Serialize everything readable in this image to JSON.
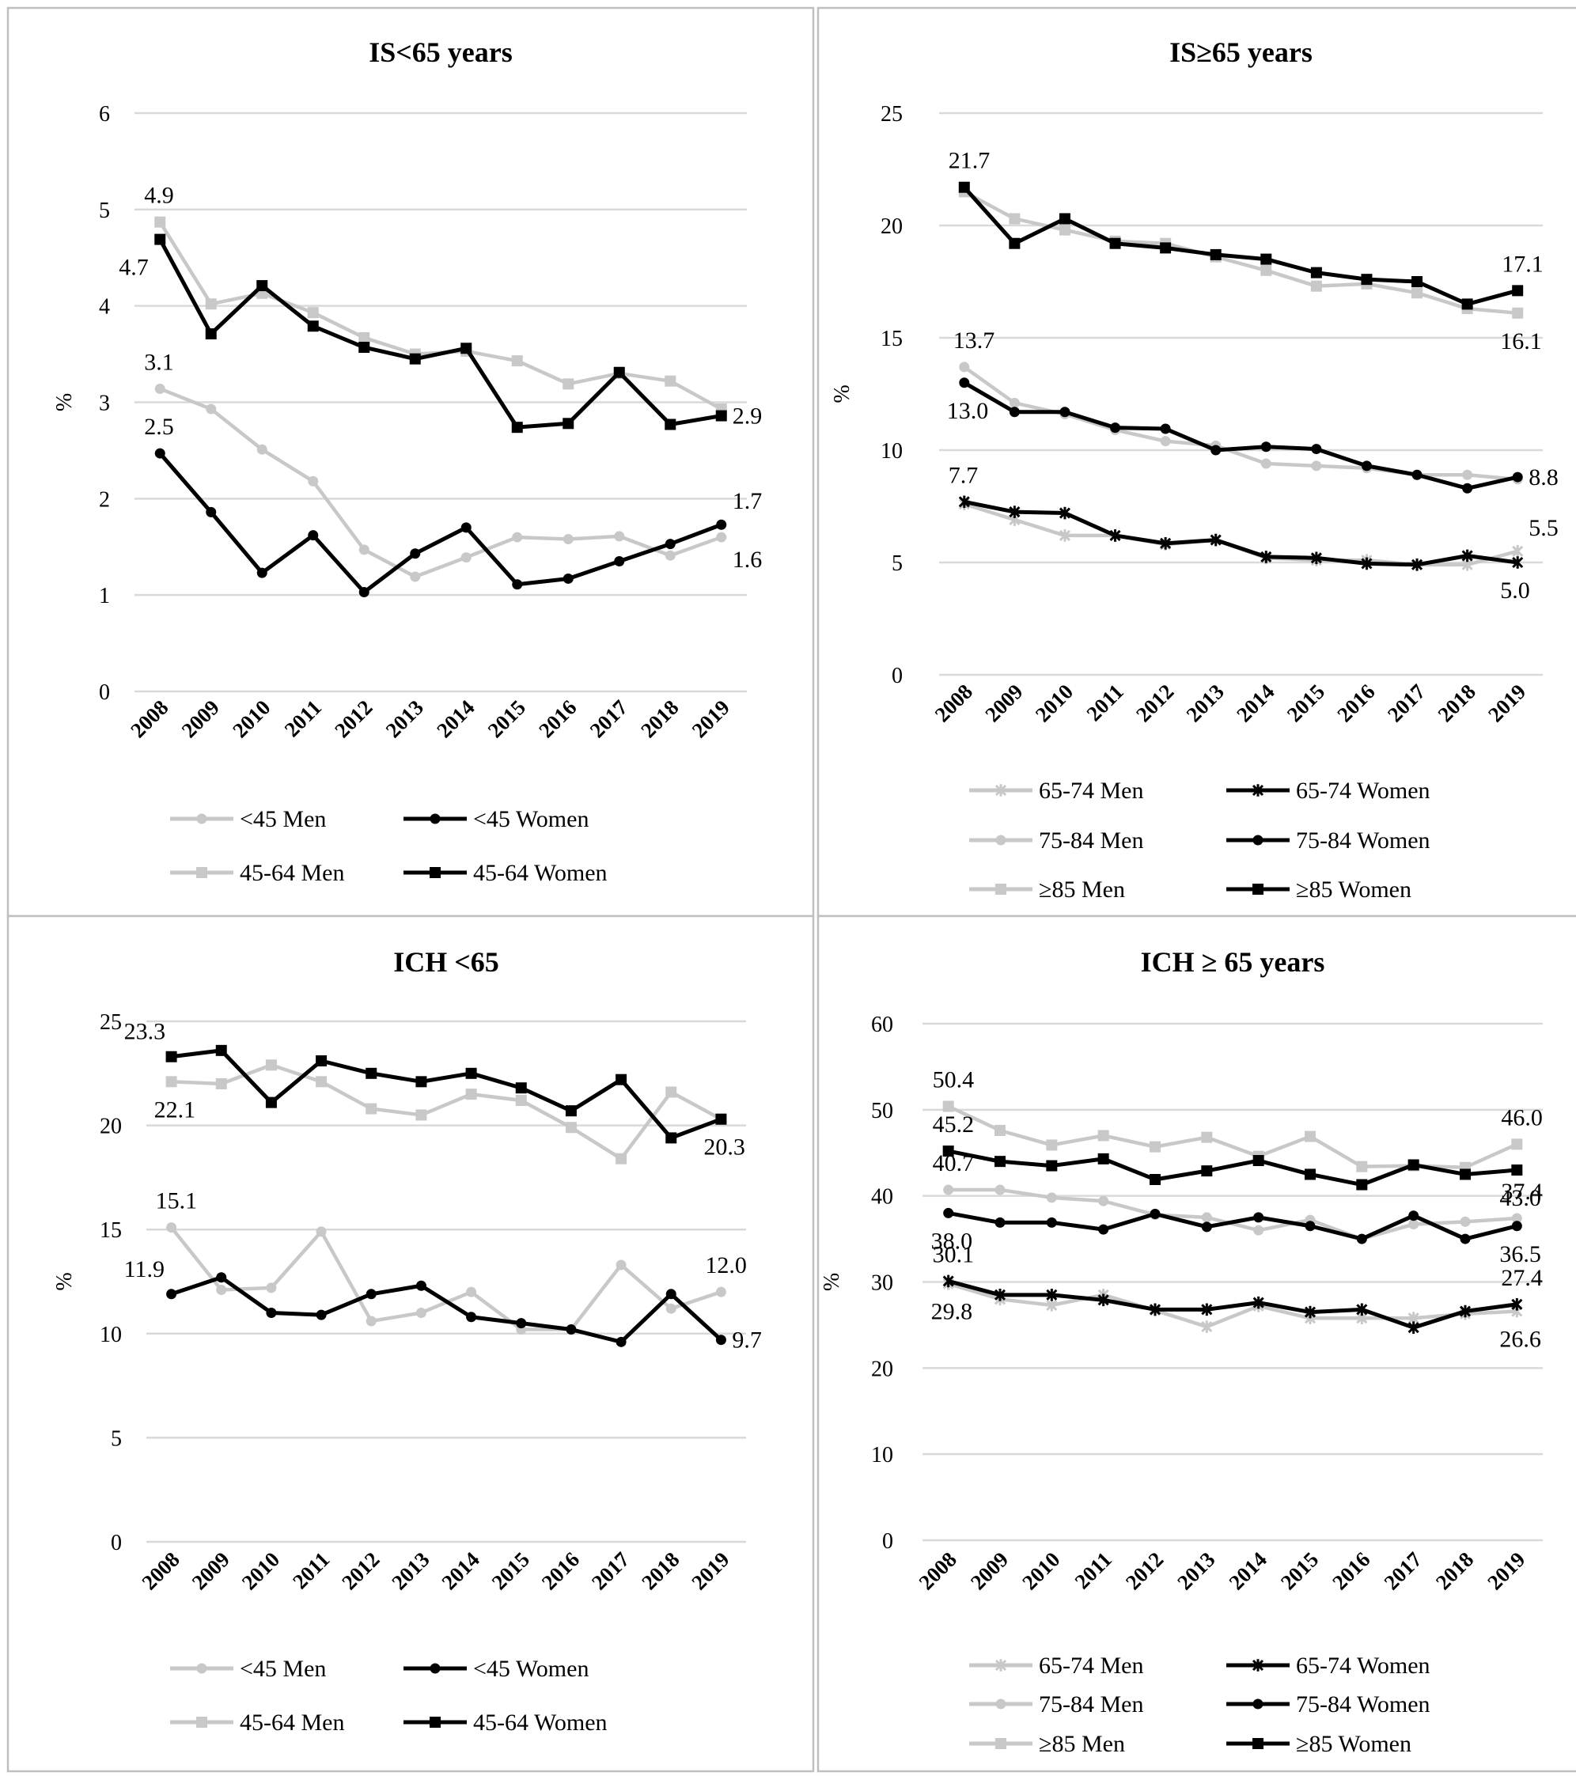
{
  "colors": {
    "men": "#c8c8c8",
    "women": "#000000",
    "grid": "#d9d9d9",
    "frame": "#bfbfbf"
  },
  "chart_data": [
    {
      "id": "panel-is-under-65",
      "type": "line",
      "title": "IS<65 years",
      "xlabel": "",
      "ylabel": "%",
      "ylim": [
        0,
        6
      ],
      "yticks": [
        0,
        1,
        2,
        3,
        4,
        5,
        6
      ],
      "categories": [
        "2008",
        "2009",
        "2010",
        "2011",
        "2012",
        "2013",
        "2014",
        "2015",
        "2016",
        "2017",
        "2018",
        "2019"
      ],
      "legend": {
        "position": "bottom",
        "columns": 2
      },
      "series": [
        {
          "name": "<45 Men",
          "color": "men",
          "marker": "circle",
          "values": [
            3.14,
            2.93,
            2.51,
            2.18,
            1.47,
            1.19,
            1.39,
            1.6,
            1.58,
            1.61,
            1.41,
            1.6
          ]
        },
        {
          "name": "<45 Women",
          "color": "women",
          "marker": "circle",
          "values": [
            2.47,
            1.86,
            1.23,
            1.62,
            1.03,
            1.43,
            1.7,
            1.11,
            1.17,
            1.35,
            1.53,
            1.73
          ]
        },
        {
          "name": "45-64 Men",
          "color": "men",
          "marker": "square",
          "values": [
            4.87,
            4.02,
            4.13,
            3.93,
            3.67,
            3.5,
            3.53,
            3.43,
            3.19,
            3.3,
            3.22,
            2.93
          ]
        },
        {
          "name": "45-64 Women",
          "color": "women",
          "marker": "square",
          "values": [
            4.69,
            3.71,
            4.21,
            3.79,
            3.57,
            3.45,
            3.56,
            2.74,
            2.78,
            3.31,
            2.77,
            2.86
          ]
        }
      ],
      "annotations": [
        {
          "text": "4.9",
          "series": 2,
          "point": 0,
          "pos": "above"
        },
        {
          "text": "4.7",
          "series": 3,
          "point": 0,
          "pos": "below-left"
        },
        {
          "text": "3.1",
          "series": 0,
          "point": 0,
          "pos": "above"
        },
        {
          "text": "2.5",
          "series": 1,
          "point": 0,
          "pos": "above"
        },
        {
          "text": "2.9",
          "series": 3,
          "point": 11,
          "pos": "right"
        },
        {
          "text": "1.7",
          "series": 1,
          "point": 11,
          "pos": "right-up"
        },
        {
          "text": "1.6",
          "series": 0,
          "point": 11,
          "pos": "right-down"
        }
      ]
    },
    {
      "id": "panel-is-65-plus",
      "type": "line",
      "title": "IS≥65 years",
      "xlabel": "",
      "ylabel": "%",
      "ylim": [
        0,
        25
      ],
      "yticks": [
        0,
        5,
        10,
        15,
        20,
        25
      ],
      "categories": [
        "2008",
        "2009",
        "2010",
        "2011",
        "2012",
        "2013",
        "2014",
        "2015",
        "2016",
        "2017",
        "2018",
        "2019"
      ],
      "legend": {
        "position": "bottom",
        "columns": 2
      },
      "series": [
        {
          "name": "65-74 Men",
          "color": "men",
          "marker": "star",
          "values": [
            7.6,
            6.9,
            6.2,
            6.2,
            5.8,
            6.0,
            5.2,
            5.1,
            5.1,
            4.9,
            4.9,
            5.5
          ]
        },
        {
          "name": "65-74 Women",
          "color": "women",
          "marker": "star",
          "values": [
            7.7,
            7.25,
            7.2,
            6.2,
            5.85,
            6.0,
            5.25,
            5.2,
            4.95,
            4.9,
            5.3,
            5.0
          ]
        },
        {
          "name": "75-84 Men",
          "color": "men",
          "marker": "circle",
          "values": [
            13.7,
            12.1,
            11.6,
            10.9,
            10.4,
            10.2,
            9.4,
            9.3,
            9.2,
            8.9,
            8.9,
            8.7
          ]
        },
        {
          "name": "75-84 Women",
          "color": "women",
          "marker": "circle",
          "values": [
            13.0,
            11.7,
            11.7,
            11.0,
            10.95,
            10.0,
            10.15,
            10.05,
            9.3,
            8.9,
            8.3,
            8.8
          ]
        },
        {
          "name": "≥85 Men",
          "color": "men",
          "marker": "square",
          "values": [
            21.5,
            20.3,
            19.8,
            19.3,
            19.2,
            18.6,
            18.0,
            17.3,
            17.4,
            17.0,
            16.3,
            16.1
          ]
        },
        {
          "name": "≥85 Women",
          "color": "women",
          "marker": "square",
          "values": [
            21.7,
            19.2,
            20.3,
            19.2,
            19.0,
            18.7,
            18.5,
            17.9,
            17.6,
            17.5,
            16.5,
            17.1
          ]
        }
      ],
      "annotations": [
        {
          "text": "21.7",
          "series": 5,
          "point": 0,
          "pos": "above"
        },
        {
          "text": "17.1",
          "series": 5,
          "point": 11,
          "pos": "above"
        },
        {
          "text": "16.1",
          "series": 4,
          "point": 11,
          "pos": "below"
        },
        {
          "text": "13.7",
          "series": 2,
          "point": 0,
          "pos": "above-right"
        },
        {
          "text": "13.0",
          "series": 3,
          "point": 0,
          "pos": "below"
        },
        {
          "text": "7.7",
          "series": 1,
          "point": 0,
          "pos": "above"
        },
        {
          "text": "8.8",
          "series": 3,
          "point": 11,
          "pos": "right"
        },
        {
          "text": "5.5",
          "series": 0,
          "point": 11,
          "pos": "right-up"
        },
        {
          "text": "5.0",
          "series": 1,
          "point": 11,
          "pos": "below"
        }
      ]
    },
    {
      "id": "panel-ich-under-65",
      "type": "line",
      "title": "ICH <65",
      "xlabel": "",
      "ylabel": "%",
      "ylim": [
        0,
        25
      ],
      "yticks": [
        0,
        5,
        10,
        15,
        20,
        25
      ],
      "categories": [
        "2008",
        "2009",
        "2010",
        "2011",
        "2012",
        "2013",
        "2014",
        "2015",
        "2016",
        "2017",
        "2018",
        "2019"
      ],
      "legend": {
        "position": "bottom",
        "columns": 2
      },
      "series": [
        {
          "name": "<45 Men",
          "color": "men",
          "marker": "circle",
          "values": [
            15.1,
            12.1,
            12.2,
            14.9,
            10.6,
            11.0,
            12.0,
            10.2,
            10.2,
            13.3,
            11.2,
            12.0
          ]
        },
        {
          "name": "<45 Women",
          "color": "women",
          "marker": "circle",
          "values": [
            11.9,
            12.7,
            11.0,
            10.9,
            11.9,
            12.3,
            10.8,
            10.5,
            10.2,
            9.6,
            11.9,
            9.7
          ]
        },
        {
          "name": "45-64 Men",
          "color": "men",
          "marker": "square",
          "values": [
            22.1,
            22.0,
            22.9,
            22.1,
            20.8,
            20.5,
            21.5,
            21.2,
            19.9,
            18.4,
            21.6,
            20.3
          ]
        },
        {
          "name": "45-64 Women",
          "color": "women",
          "marker": "square",
          "values": [
            23.3,
            23.6,
            21.1,
            23.1,
            22.5,
            22.1,
            22.5,
            21.8,
            20.7,
            22.2,
            19.4,
            20.3
          ]
        }
      ],
      "annotations": [
        {
          "text": "23.3",
          "series": 3,
          "point": 0,
          "pos": "above-left"
        },
        {
          "text": "22.1",
          "series": 2,
          "point": 0,
          "pos": "below"
        },
        {
          "text": "15.1",
          "series": 0,
          "point": 0,
          "pos": "above"
        },
        {
          "text": "11.9",
          "series": 1,
          "point": 0,
          "pos": "above-left"
        },
        {
          "text": "20.3",
          "series": 3,
          "point": 11,
          "pos": "below"
        },
        {
          "text": "12.0",
          "series": 0,
          "point": 11,
          "pos": "above"
        },
        {
          "text": "9.7",
          "series": 1,
          "point": 11,
          "pos": "right"
        }
      ]
    },
    {
      "id": "panel-ich-65-plus",
      "type": "line",
      "title": "ICH ≥ 65 years",
      "xlabel": "",
      "ylabel": "%",
      "ylim": [
        0,
        60
      ],
      "yticks": [
        0,
        10,
        20,
        30,
        40,
        50,
        60
      ],
      "categories": [
        "2008",
        "2009",
        "2010",
        "2011",
        "2012",
        "2013",
        "2014",
        "2015",
        "2016",
        "2017",
        "2018",
        "2019"
      ],
      "legend": {
        "position": "bottom",
        "columns": 2
      },
      "series": [
        {
          "name": "65-74 Men",
          "color": "men",
          "marker": "star",
          "values": [
            29.8,
            28.0,
            27.3,
            28.5,
            26.7,
            24.8,
            27.2,
            25.8,
            25.8,
            25.8,
            26.3,
            26.6
          ]
        },
        {
          "name": "65-74 Women",
          "color": "women",
          "marker": "star",
          "values": [
            30.1,
            28.5,
            28.5,
            27.9,
            26.8,
            26.8,
            27.6,
            26.5,
            26.8,
            24.7,
            26.6,
            27.4
          ]
        },
        {
          "name": "75-84 Men",
          "color": "men",
          "marker": "circle",
          "values": [
            40.7,
            40.7,
            39.8,
            39.4,
            37.8,
            37.5,
            36.0,
            37.2,
            35.0,
            36.7,
            37.0,
            37.4
          ]
        },
        {
          "name": "75-84 Women",
          "color": "women",
          "marker": "circle",
          "values": [
            38.0,
            36.9,
            36.9,
            36.1,
            37.9,
            36.4,
            37.5,
            36.5,
            35.0,
            37.7,
            35.0,
            36.5
          ]
        },
        {
          "name": "≥85 Men",
          "color": "men",
          "marker": "square",
          "values": [
            50.4,
            47.6,
            45.9,
            47.0,
            45.7,
            46.8,
            44.6,
            46.9,
            43.4,
            43.5,
            43.3,
            46.0
          ]
        },
        {
          "name": "≥85 Women",
          "color": "women",
          "marker": "square",
          "values": [
            45.2,
            44.0,
            43.5,
            44.3,
            41.9,
            42.9,
            44.1,
            42.5,
            41.3,
            43.6,
            42.5,
            43.0
          ]
        }
      ],
      "annotations": [
        {
          "text": "50.4",
          "series": 4,
          "point": 0,
          "pos": "above"
        },
        {
          "text": "45.2",
          "series": 5,
          "point": 0,
          "pos": "above"
        },
        {
          "text": "40.7",
          "series": 2,
          "point": 0,
          "pos": "above"
        },
        {
          "text": "38.0",
          "series": 3,
          "point": 0,
          "pos": "below"
        },
        {
          "text": "30.1",
          "series": 1,
          "point": 0,
          "pos": "above"
        },
        {
          "text": "29.8",
          "series": 0,
          "point": 0,
          "pos": "below"
        },
        {
          "text": "46.0",
          "series": 4,
          "point": 11,
          "pos": "above"
        },
        {
          "text": "43.0",
          "series": 5,
          "point": 11,
          "pos": "below"
        },
        {
          "text": "37.4",
          "series": 2,
          "point": 11,
          "pos": "above"
        },
        {
          "text": "36.5",
          "series": 3,
          "point": 11,
          "pos": "below"
        },
        {
          "text": "27.4",
          "series": 1,
          "point": 11,
          "pos": "above"
        },
        {
          "text": "26.6",
          "series": 0,
          "point": 11,
          "pos": "below"
        }
      ]
    }
  ]
}
